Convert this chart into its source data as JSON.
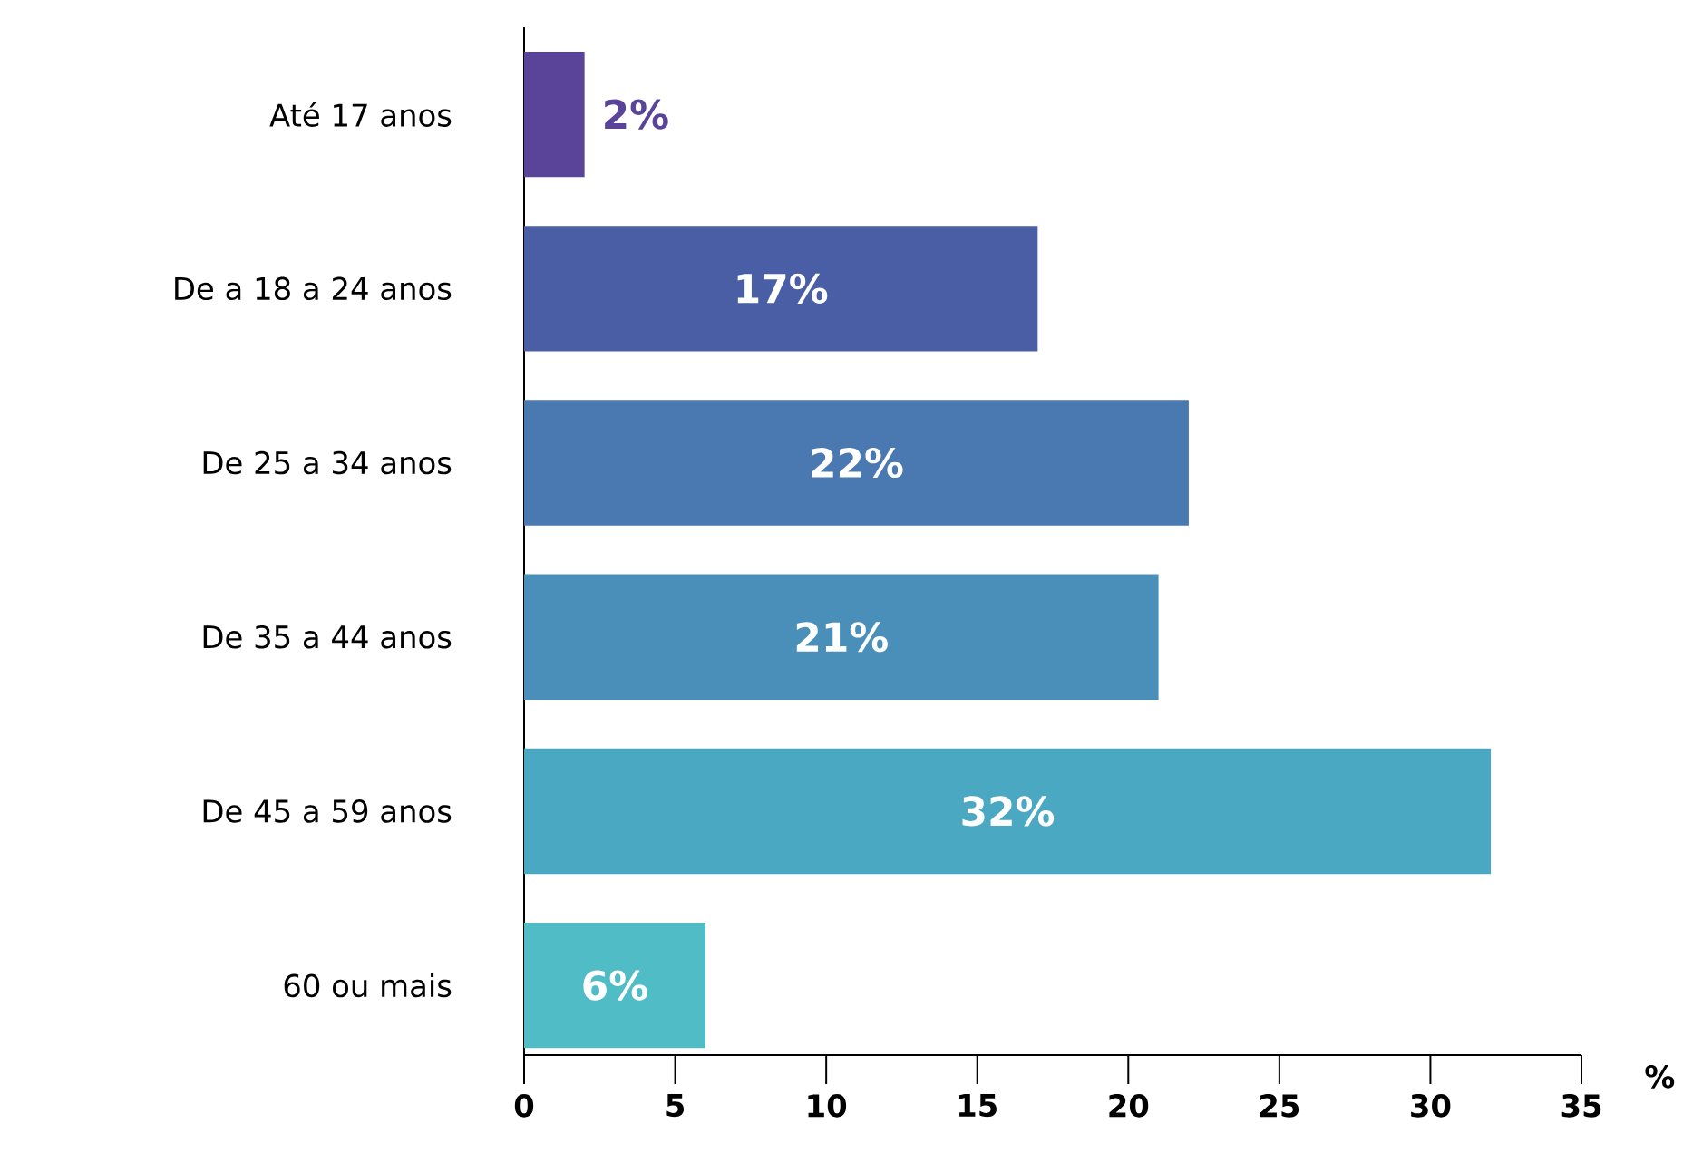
{
  "chart_data": {
    "type": "bar",
    "orientation": "horizontal",
    "xlabel": "%",
    "categories": [
      "Até 17 anos",
      "De a 18 a 24 anos",
      "De 25 a 34 anos",
      "De 35 a 44 anos",
      "De 45 a 59 anos",
      "60 ou mais"
    ],
    "values": [
      2,
      17,
      22,
      21,
      32,
      6
    ],
    "colors": [
      "#5a449a",
      "#4a5ea6",
      "#4a78b0",
      "#4a8fb9",
      "#4aa8c2",
      "#50bcc6"
    ],
    "value_labels": [
      "2%",
      "17%",
      "22%",
      "21%",
      "32%",
      "6%"
    ],
    "xlim": [
      0,
      35
    ],
    "xticks": [
      0,
      5,
      10,
      15,
      20,
      25,
      30,
      35
    ]
  }
}
